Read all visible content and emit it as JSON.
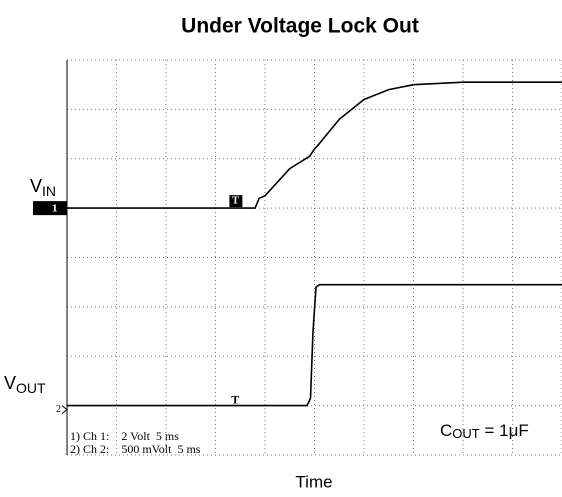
{
  "chart_data": {
    "type": "line",
    "title": "Under Voltage Lock Out",
    "xlabel": "Time",
    "xlim": [
      0,
      10
    ],
    "ylim": [
      0,
      8
    ],
    "xticks": [
      0,
      1,
      2,
      3,
      4,
      5,
      6,
      7,
      8,
      9,
      10
    ],
    "yticks": [
      0,
      1,
      2,
      3,
      4,
      5,
      6,
      7,
      8
    ],
    "grid": true,
    "series": [
      {
        "color": "#000000",
        "x": [
          0,
          3.2,
          3.8,
          3.88,
          4.0,
          4.5,
          4.9,
          5.0,
          5.05,
          5.5,
          6.0,
          6.5,
          7.0,
          8.0,
          10
        ],
        "values": [
          5.0,
          5.0,
          5.0,
          5.2,
          5.25,
          5.8,
          6.05,
          6.2,
          6.25,
          6.8,
          7.2,
          7.4,
          7.5,
          7.55,
          7.55
        ]
      },
      {
        "color": "#000000",
        "x": [
          0,
          3.4,
          4.85,
          4.92,
          4.97,
          5.03,
          5.1,
          10
        ],
        "values": [
          1.0,
          1.0,
          1.0,
          1.15,
          2.5,
          3.4,
          3.45,
          3.45
        ]
      }
    ],
    "channel_labels": [
      {
        "text": "V",
        "sub": "IN",
        "marker": "1",
        "trigger": "T"
      },
      {
        "text": "V",
        "sub": "OUT",
        "marker": "2",
        "trigger": "T"
      }
    ],
    "annotations": {
      "cap": {
        "text": "C",
        "sub": "OUT",
        "rest": " = 1μF"
      },
      "settings": [
        "1) Ch 1:    2 Volt  5 ms",
        "2) Ch 2:    500 mVolt  5 ms"
      ]
    }
  }
}
